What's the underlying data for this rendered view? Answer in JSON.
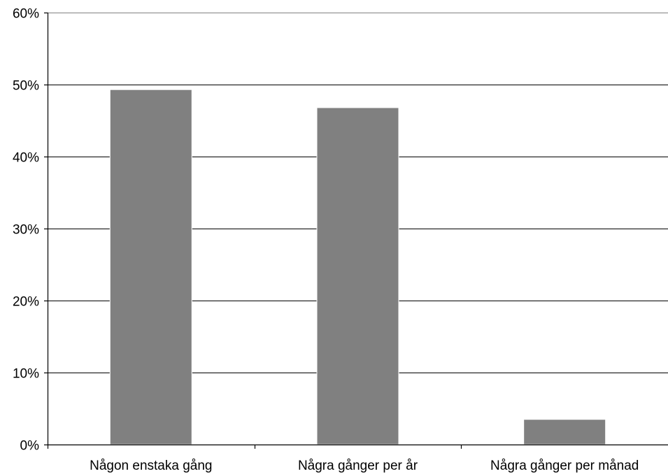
{
  "chart_data": {
    "type": "bar",
    "title": "",
    "xlabel": "",
    "ylabel": "",
    "categories": [
      "Någon enstaka gång",
      "Några gånger per år",
      "Några gånger per månad"
    ],
    "values": [
      0.493,
      0.468,
      0.035
    ],
    "ylim": [
      0,
      0.6
    ],
    "yticks": [
      0,
      0.1,
      0.2,
      0.3,
      0.4,
      0.5,
      0.6
    ],
    "ytick_labels": [
      "0%",
      "10%",
      "20%",
      "30%",
      "40%",
      "50%",
      "60%"
    ],
    "grid": true,
    "legend": false,
    "bar_color": "#808080"
  }
}
